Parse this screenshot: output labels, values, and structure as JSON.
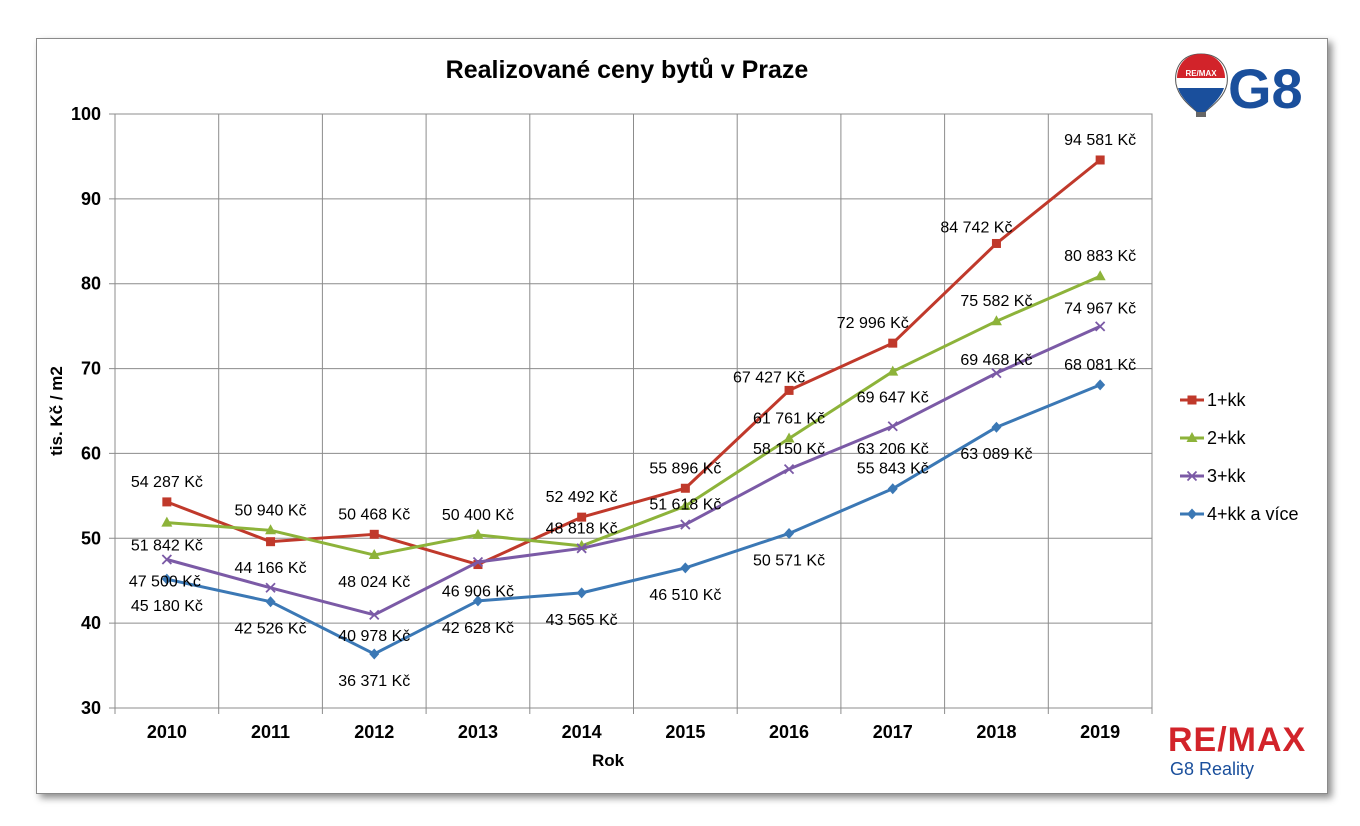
{
  "chart_data": {
    "type": "line",
    "title": "Realizované ceny bytů v Praze",
    "xlabel": "Rok",
    "ylabel": "tis. Kč / m2",
    "ylim": [
      30,
      100
    ],
    "yticks": [
      "30",
      "40",
      "50",
      "60",
      "70",
      "80",
      "90",
      "100"
    ],
    "categories": [
      "2010",
      "2011",
      "2012",
      "2013",
      "2014",
      "2015",
      "2016",
      "2017",
      "2018",
      "2019"
    ],
    "grid": true,
    "legend_position": "right",
    "series": [
      {
        "name": "1+kk",
        "color": "#c0392b",
        "marker": "square",
        "values": [
          54.287,
          49.6,
          50.468,
          46.906,
          52.492,
          55.896,
          67.427,
          72.996,
          84.742,
          94.581
        ],
        "labels": [
          "54 287 Kč",
          "",
          "50 468 Kč",
          "46 906 Kč",
          "52 492 Kč",
          "55 896 Kč",
          "67 427 Kč",
          "72 996 Kč",
          "84 742 Kč",
          "94 581 Kč"
        ]
      },
      {
        "name": "2+kk",
        "color": "#8db33a",
        "marker": "triangle",
        "values": [
          51.842,
          50.94,
          48.024,
          50.4,
          49.1,
          53.8,
          61.761,
          69.647,
          75.582,
          80.883
        ],
        "labels": [
          "51 842 Kč",
          "50 940 Kč",
          "48 024 Kč",
          "50 400 Kč",
          "",
          "",
          "61 761 Kč",
          "69 647 Kč",
          "75 582 Kč",
          "80 883 Kč"
        ]
      },
      {
        "name": "3+kk",
        "color": "#7b5aa6",
        "marker": "x",
        "values": [
          47.5,
          44.166,
          40.978,
          47.2,
          48.818,
          51.618,
          58.15,
          63.206,
          69.468,
          74.967
        ],
        "labels": [
          "47 500 Kč",
          "44 166 Kč",
          "40 978 Kč",
          "",
          "48 818 Kč",
          "51 618 Kč",
          "58 150 Kč",
          "63 206 Kč",
          "69 468 Kč",
          "74 967 Kč"
        ]
      },
      {
        "name": "4+kk a více",
        "color": "#3b78b5",
        "marker": "diamond",
        "values": [
          45.18,
          42.526,
          36.371,
          42.628,
          43.565,
          46.51,
          50.571,
          55.843,
          63.089,
          68.081
        ],
        "labels": [
          "45 180 Kč",
          "42 526 Kč",
          "36 371 Kč",
          "42 628 Kč",
          "43 565 Kč",
          "46 510 Kč",
          "50 571 Kč",
          "55 843 Kč",
          "63 089 Kč",
          "68 081 Kč"
        ]
      }
    ]
  },
  "logos": {
    "top": {
      "balloon_text": "RE/MAX",
      "text": "G8",
      "balloon_colors": [
        "#d2232a",
        "#ffffff",
        "#1a4f9c"
      ]
    },
    "bottom": {
      "brand": "RE/MAX",
      "sub": "G8 Reality",
      "brand_color": "#d2232a",
      "sub_color": "#1a4f9c"
    }
  }
}
